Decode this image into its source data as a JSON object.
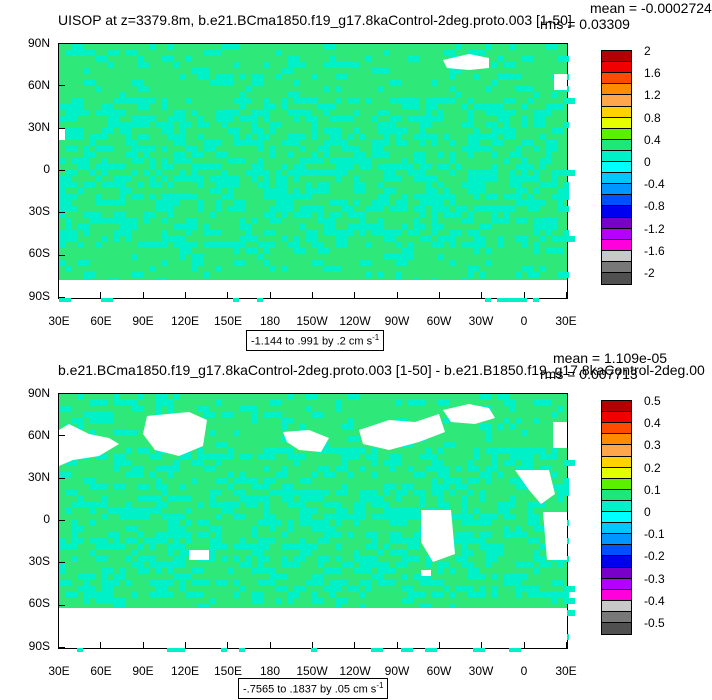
{
  "panels": [
    {
      "title": "UISOP at z=3379.8m, b.e21.BCma1850.f19_g17.8kaControl-2deg.proto.003 [1-50]",
      "mean": "mean = -0.0002724",
      "rms": "rms = 0.03309",
      "range_text": "-1.144 to .991 by .2 cm s",
      "range_unit_exp": "-1",
      "colorbar_labels": [
        "2",
        "1.6",
        "1.2",
        "0.8",
        "0.4",
        "0",
        "-0.4",
        "-0.8",
        "-1.2",
        "-1.6",
        "-2"
      ]
    },
    {
      "title": "b.e21.BCma1850.f19_g17.8kaControl-2deg.proto.003 [1-50] - b.e21.B1850.f19_g17.8kaControl-2deg.00",
      "mean": "mean = 1.109e-05",
      "rms": "rms = 0.007713",
      "range_text": "-.7565 to .1837 by .05 cm s",
      "range_unit_exp": "-1",
      "colorbar_labels": [
        "0.5",
        "0.4",
        "0.3",
        "0.2",
        "0.1",
        "0",
        "-0.1",
        "-0.2",
        "-0.3",
        "-0.4",
        "-0.5"
      ]
    }
  ],
  "lat_labels": [
    "90N",
    "60N",
    "30N",
    "0",
    "30S",
    "60S",
    "90S"
  ],
  "lon_labels": [
    "30E",
    "60E",
    "90E",
    "120E",
    "150E",
    "180",
    "150W",
    "120W",
    "90W",
    "60W",
    "30W",
    "0",
    "30E"
  ],
  "colors": {
    "scale": [
      "#b40000",
      "#f00000",
      "#ff4b00",
      "#ff8c00",
      "#ffa64d",
      "#ffd200",
      "#e6ff00",
      "#5af000",
      "#1ee678",
      "#00f0c8",
      "#00ffff",
      "#00c8ff",
      "#0096ff",
      "#0050ff",
      "#0000f0",
      "#7800c8",
      "#b400ff",
      "#ff00dc",
      "#c8c8c8",
      "#787878",
      "#505050"
    ],
    "land": "#ffffff",
    "ocean_main": "#2ee87a",
    "ocean_cyan": "#00f0c8"
  }
}
